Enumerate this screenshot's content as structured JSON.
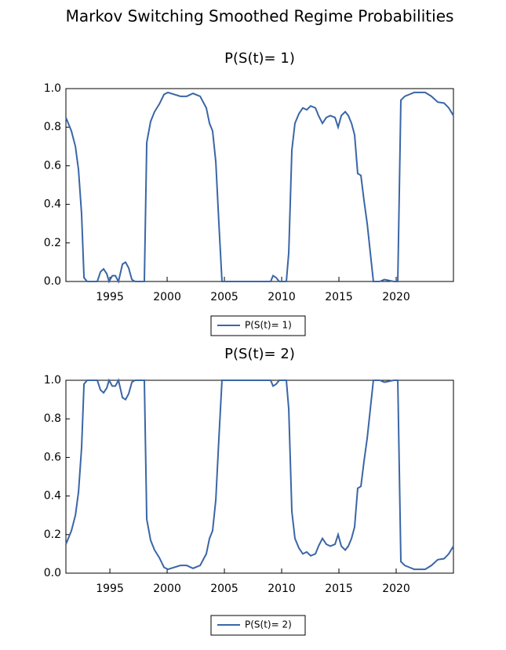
{
  "title": "Markov Switching Smoothed Regime Probabilities",
  "chart_data": [
    {
      "type": "line",
      "title": "P(S(t)= 1)",
      "x": [
        1991.16,
        1991.64,
        1991.99,
        1992.26,
        1992.53,
        1992.74,
        1993.01,
        1993.9,
        1994.18,
        1994.45,
        1994.73,
        1994.93,
        1995.21,
        1995.48,
        1995.75,
        1996.1,
        1996.37,
        1996.64,
        1996.92,
        1997.19,
        1998.01,
        1998.22,
        1998.56,
        1998.9,
        1999.32,
        1999.73,
        2000.07,
        2001.16,
        2001.71,
        2002.26,
        2002.88,
        2003.42,
        2003.7,
        2003.97,
        2004.25,
        2004.52,
        2004.79,
        2009.04,
        2009.25,
        2009.52,
        2009.79,
        2010.41,
        2010.62,
        2010.89,
        2011.16,
        2011.51,
        2011.85,
        2012.19,
        2012.53,
        2012.95,
        2013.22,
        2013.56,
        2013.9,
        2014.25,
        2014.66,
        2014.93,
        2015.21,
        2015.55,
        2015.82,
        2016.1,
        2016.37,
        2016.64,
        2016.92,
        2017.19,
        2017.47,
        2017.74,
        2018.01,
        2018.56,
        2018.97,
        2019.38,
        2019.79,
        2020.14,
        2020.41,
        2020.75,
        2021.16,
        2021.58,
        2022.05,
        2022.53,
        2023.08,
        2023.63,
        2024.18,
        2024.59,
        2025.0
      ],
      "series": [
        {
          "name": "P(S(t)= 1)",
          "color": "#3a66a6",
          "values": [
            0.85,
            0.78,
            0.7,
            0.58,
            0.35,
            0.02,
            0.0,
            0.0,
            0.05,
            0.065,
            0.04,
            0.0,
            0.03,
            0.03,
            0.0,
            0.09,
            0.1,
            0.07,
            0.01,
            0.0,
            0.0,
            0.72,
            0.83,
            0.88,
            0.92,
            0.97,
            0.98,
            0.96,
            0.96,
            0.975,
            0.96,
            0.9,
            0.82,
            0.78,
            0.62,
            0.3,
            0.0,
            0.0,
            0.03,
            0.02,
            0.0,
            0.0,
            0.15,
            0.68,
            0.82,
            0.87,
            0.9,
            0.89,
            0.91,
            0.9,
            0.86,
            0.82,
            0.85,
            0.86,
            0.85,
            0.8,
            0.86,
            0.88,
            0.86,
            0.82,
            0.76,
            0.56,
            0.55,
            0.42,
            0.3,
            0.15,
            0.0,
            0.0,
            0.01,
            0.005,
            0.0,
            0.0,
            0.94,
            0.96,
            0.97,
            0.98,
            0.98,
            0.98,
            0.96,
            0.93,
            0.925,
            0.9,
            0.86
          ]
        }
      ],
      "xlim": [
        1991.16,
        2025.0
      ],
      "ylim": [
        0,
        1
      ],
      "xticks": [
        1995,
        2000,
        2005,
        2010,
        2015,
        2020
      ],
      "yticks": [
        {
          "value": 0,
          "label": "0.0"
        },
        0.2,
        0.4,
        0.6,
        0.8,
        {
          "value": 1,
          "label": "1.0"
        }
      ]
    },
    {
      "type": "line",
      "title": "P(S(t)= 2)",
      "x": [
        1991.16,
        1991.64,
        1991.99,
        1992.26,
        1992.53,
        1992.74,
        1993.01,
        1993.9,
        1994.18,
        1994.45,
        1994.73,
        1994.93,
        1995.21,
        1995.48,
        1995.75,
        1996.1,
        1996.37,
        1996.64,
        1996.92,
        1997.19,
        1998.01,
        1998.22,
        1998.56,
        1998.9,
        1999.32,
        1999.73,
        2000.07,
        2001.16,
        2001.71,
        2002.26,
        2002.88,
        2003.42,
        2003.7,
        2003.97,
        2004.25,
        2004.52,
        2004.79,
        2009.04,
        2009.25,
        2009.52,
        2009.79,
        2010.41,
        2010.62,
        2010.89,
        2011.16,
        2011.51,
        2011.85,
        2012.19,
        2012.53,
        2012.95,
        2013.22,
        2013.56,
        2013.9,
        2014.25,
        2014.66,
        2014.93,
        2015.21,
        2015.55,
        2015.82,
        2016.1,
        2016.37,
        2016.64,
        2016.92,
        2017.19,
        2017.47,
        2017.74,
        2018.01,
        2018.56,
        2018.97,
        2019.38,
        2019.79,
        2020.14,
        2020.41,
        2020.75,
        2021.16,
        2021.58,
        2022.05,
        2022.53,
        2023.08,
        2023.63,
        2024.18,
        2024.59,
        2025.0
      ],
      "series": [
        {
          "name": "P(S(t)= 2)",
          "color": "#3a66a6",
          "values": [
            0.15,
            0.22,
            0.3,
            0.42,
            0.65,
            0.98,
            1.0,
            1.0,
            0.95,
            0.935,
            0.96,
            1.0,
            0.97,
            0.97,
            1.0,
            0.91,
            0.9,
            0.93,
            0.99,
            1.0,
            1.0,
            0.28,
            0.17,
            0.12,
            0.08,
            0.03,
            0.02,
            0.04,
            0.04,
            0.025,
            0.04,
            0.1,
            0.18,
            0.22,
            0.38,
            0.7,
            1.0,
            1.0,
            0.97,
            0.98,
            1.0,
            1.0,
            0.85,
            0.32,
            0.18,
            0.13,
            0.1,
            0.11,
            0.09,
            0.1,
            0.14,
            0.18,
            0.15,
            0.14,
            0.15,
            0.2,
            0.14,
            0.12,
            0.14,
            0.18,
            0.24,
            0.44,
            0.45,
            0.58,
            0.7,
            0.85,
            1.0,
            1.0,
            0.99,
            0.995,
            1.0,
            1.0,
            0.06,
            0.04,
            0.03,
            0.02,
            0.02,
            0.02,
            0.04,
            0.07,
            0.075,
            0.1,
            0.14
          ]
        }
      ],
      "xlim": [
        1991.16,
        2025.0
      ],
      "ylim": [
        0,
        1
      ],
      "xticks": [
        1995,
        2000,
        2005,
        2010,
        2015,
        2020
      ],
      "yticks": [
        {
          "value": 0,
          "label": "0.0"
        },
        0.2,
        0.4,
        0.6,
        0.8,
        {
          "value": 1,
          "label": "1.0"
        }
      ]
    }
  ]
}
